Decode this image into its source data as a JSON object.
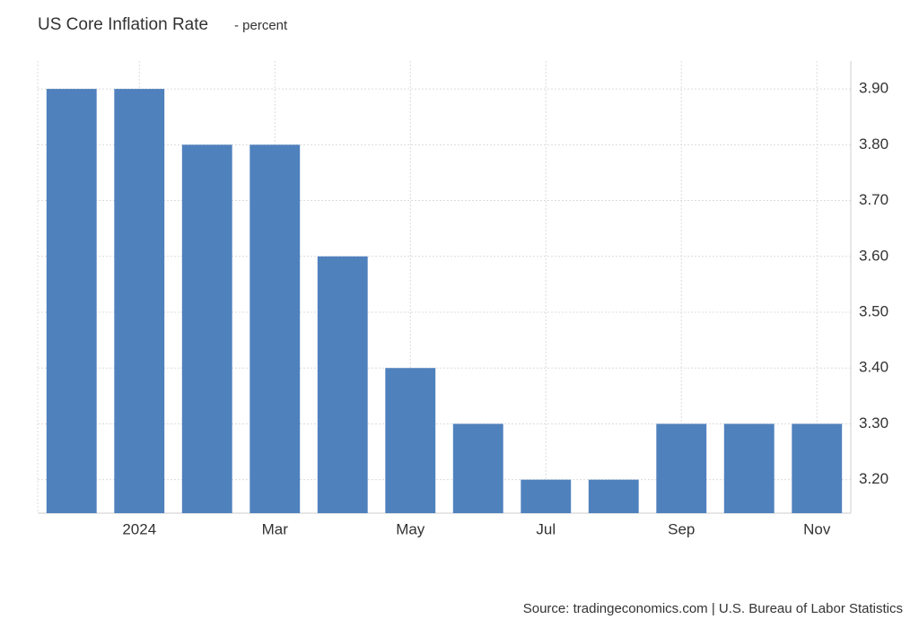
{
  "chart_data": {
    "type": "bar",
    "title": "US Core Inflation Rate",
    "subtitle": "- percent",
    "source": "Source: tradingeconomics.com | U.S. Bureau of Labor Statistics",
    "categories": [
      null,
      "2024",
      null,
      "Mar",
      null,
      "May",
      null,
      "Jul",
      null,
      "Sep",
      null,
      "Nov"
    ],
    "values": [
      3.9,
      3.9,
      3.8,
      3.8,
      3.6,
      3.4,
      3.3,
      3.2,
      3.2,
      3.3,
      3.3,
      3.3
    ],
    "color": "#4f81bd",
    "ylim": [
      3.14,
      3.95
    ],
    "yticks": [
      {
        "value": 3.2,
        "label": "3.20"
      },
      {
        "value": 3.3,
        "label": "3.30"
      },
      {
        "value": 3.4,
        "label": "3.40"
      },
      {
        "value": 3.5,
        "label": "3.50"
      },
      {
        "value": 3.6,
        "label": "3.60"
      },
      {
        "value": 3.7,
        "label": "3.70"
      },
      {
        "value": 3.8,
        "label": "3.80"
      },
      {
        "value": 3.9,
        "label": "3.90"
      }
    ],
    "grid": true
  }
}
